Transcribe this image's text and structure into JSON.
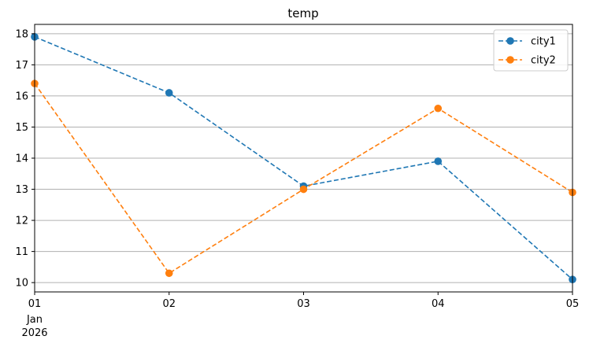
{
  "chart_data": {
    "type": "line",
    "title": "temp",
    "xlabel": "",
    "ylabel": "",
    "x": [
      "2026-01-01",
      "2026-01-02",
      "2026-01-03",
      "2026-01-04",
      "2026-01-05"
    ],
    "x_tick_labels": [
      "01",
      "02",
      "03",
      "04",
      "05"
    ],
    "x_secondary_labels": [
      "Jan",
      "2026"
    ],
    "ylim": [
      9.7,
      18.3
    ],
    "y_ticks": [
      10,
      11,
      12,
      13,
      14,
      15,
      16,
      17,
      18
    ],
    "grid": "y-only",
    "legend_position": "top-right",
    "line_style": "dashed",
    "marker": "circle",
    "series": [
      {
        "name": "city1",
        "color": "#1f77b4",
        "values": [
          17.9,
          16.1,
          13.1,
          13.9,
          10.1
        ]
      },
      {
        "name": "city2",
        "color": "#ff7f0e",
        "values": [
          16.4,
          10.3,
          13.0,
          15.6,
          12.9
        ]
      }
    ]
  }
}
